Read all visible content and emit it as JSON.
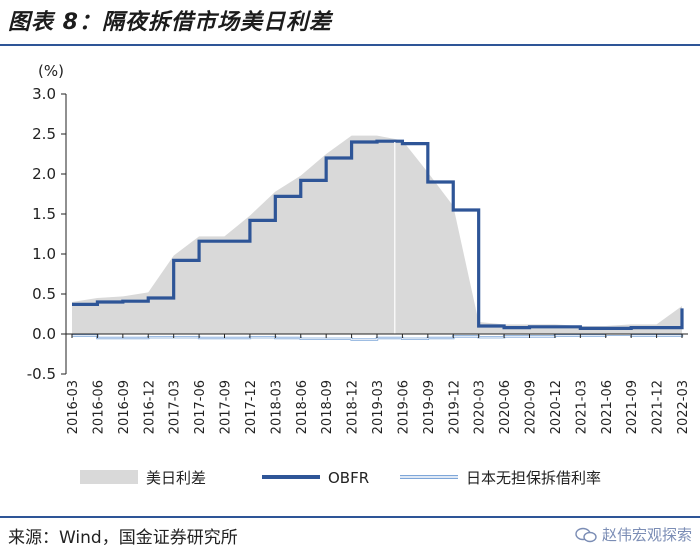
{
  "header": {
    "title": "图表 8：隔夜拆借市场美日利差"
  },
  "footer": {
    "source": "来源：Wind，国金证券研究所",
    "watermark": "赵伟宏观探索"
  },
  "chart_data": {
    "type": "area",
    "unit_label": "(%)",
    "y_ticks": [
      "3.0",
      "2.5",
      "2.0",
      "1.5",
      "1.0",
      "0.5",
      "0.0",
      "-0.5"
    ],
    "ylim": [
      -0.5,
      3.0
    ],
    "x": [
      "2016-03",
      "2016-06",
      "2016-09",
      "2016-12",
      "2017-03",
      "2017-06",
      "2017-09",
      "2017-12",
      "2018-03",
      "2018-06",
      "2018-09",
      "2018-12",
      "2019-03",
      "2019-06",
      "2019-09",
      "2019-12",
      "2020-03",
      "2020-06",
      "2020-09",
      "2020-12",
      "2021-03",
      "2021-06",
      "2021-09",
      "2021-12",
      "2022-03"
    ],
    "legend_position": "bottom",
    "series": [
      {
        "name": "美日利差",
        "kind": "area",
        "color": "#d9d9d9",
        "values": [
          0.4,
          0.45,
          0.47,
          0.52,
          0.98,
          1.22,
          1.22,
          1.48,
          1.78,
          1.98,
          2.25,
          2.48,
          2.48,
          2.42,
          2.02,
          1.6,
          0.15,
          0.12,
          0.12,
          0.12,
          0.1,
          0.1,
          0.12,
          0.12,
          0.35
        ]
      },
      {
        "name": "OBFR",
        "kind": "line",
        "color": "#2e5597",
        "values": [
          0.37,
          0.4,
          0.41,
          0.45,
          0.92,
          1.16,
          1.16,
          1.42,
          1.72,
          1.92,
          2.2,
          2.4,
          2.41,
          2.38,
          1.9,
          1.55,
          0.1,
          0.08,
          0.09,
          0.09,
          0.07,
          0.07,
          0.08,
          0.08,
          0.32
        ]
      },
      {
        "name": "日本无担保拆借利率",
        "kind": "line",
        "color": "#7fa7d9",
        "values": [
          -0.02,
          -0.05,
          -0.05,
          -0.04,
          -0.04,
          -0.05,
          -0.05,
          -0.04,
          -0.05,
          -0.06,
          -0.06,
          -0.07,
          -0.05,
          -0.06,
          -0.05,
          -0.03,
          -0.04,
          -0.03,
          -0.03,
          -0.02,
          -0.02,
          -0.01,
          -0.02,
          -0.02,
          -0.01
        ]
      }
    ]
  }
}
